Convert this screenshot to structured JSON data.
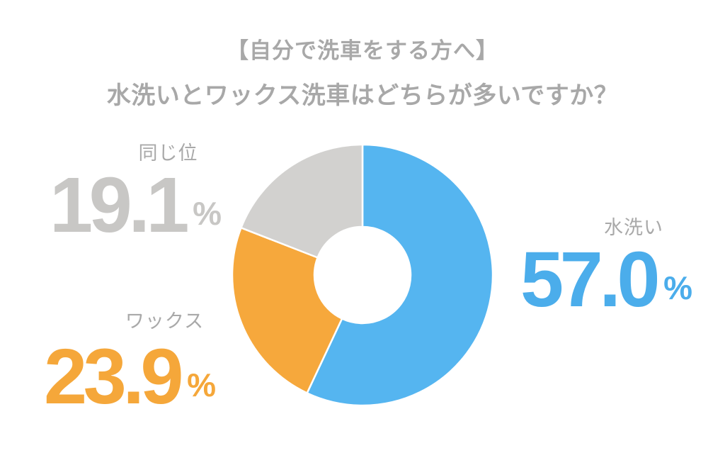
{
  "title": {
    "line1": "【自分で洗車をする方へ】",
    "line2": "水洗いとワックス洗車はどちらが多いですか？"
  },
  "chart_data": {
    "type": "pie",
    "subtype": "donut",
    "title": "【自分で洗車をする方へ】 水洗いとワックス洗車はどちらが多いですか？",
    "categories": [
      "水洗い",
      "ワックス",
      "同じ位"
    ],
    "values": [
      57.0,
      23.9,
      19.1
    ],
    "unit": "%",
    "colors": [
      "#55b5f0",
      "#f6a83c",
      "#d2d1cf"
    ],
    "start_angle_deg": 0,
    "direction": "clockwise",
    "inner_radius_ratio": 0.37,
    "slice_gap_stroke": "#ffffff",
    "legend_position": "outside-callouts"
  },
  "stats": [
    {
      "label": "水洗い",
      "value": "57.0",
      "unit": "%",
      "color": "#4badeb"
    },
    {
      "label": "ワックス",
      "value": "23.9",
      "unit": "%",
      "color": "#f5a73a"
    },
    {
      "label": "同じ位",
      "value": "19.1",
      "unit": "%",
      "color": "#c8c7c5"
    }
  ]
}
